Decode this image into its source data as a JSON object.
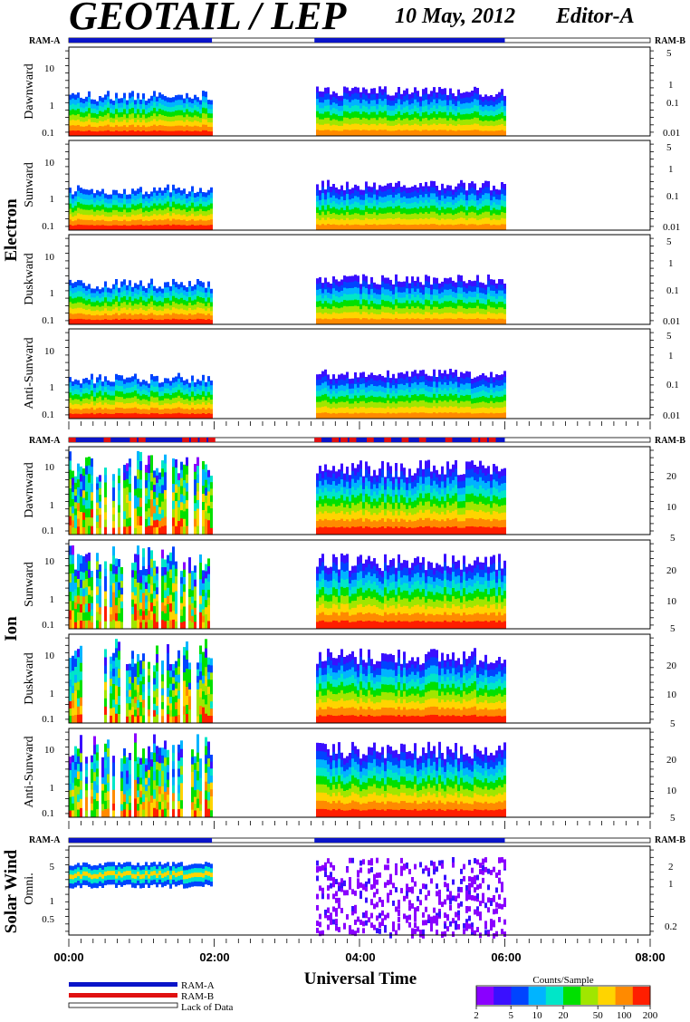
{
  "header": {
    "title": "GEOTAIL / LEP",
    "date": "10 May, 2012",
    "editor": "Editor-A"
  },
  "colors": {
    "ram_a": "#0a14c8",
    "ram_b": "#e01010",
    "colorscale": [
      "#8a00ff",
      "#3a10ff",
      "#0044ff",
      "#00b4ff",
      "#00e6c8",
      "#00e000",
      "#a0e600",
      "#ffd400",
      "#ff8a00",
      "#ff1e00"
    ]
  },
  "chart_data": {
    "type": "heatmap",
    "xlabel": "Universal Time",
    "xticks": [
      "00:00",
      "02:00",
      "04:00",
      "06:00",
      "08:00"
    ],
    "xlim_hours": [
      0,
      8
    ],
    "data_intervals_hours": [
      [
        0.0,
        1.97
      ],
      [
        3.38,
        6.0
      ]
    ],
    "colorbar": {
      "title": "Counts/Sample",
      "ticks": [
        "2",
        "5",
        "10",
        "20",
        "50",
        "100",
        "200"
      ],
      "range": [
        2,
        200
      ],
      "scale": "log"
    },
    "legend": [
      "RAM-A",
      "RAM-B",
      "Lack of Data"
    ],
    "groups": [
      {
        "name": "Electron",
        "ram_left": "RAM-A",
        "ram_right": "RAM-B",
        "panels": [
          {
            "label": "Dawnward",
            "left_ticks": [
              "10",
              "1",
              "0.1"
            ],
            "right_ticks": [
              "5",
              "1",
              "0.1",
              "0.01"
            ]
          },
          {
            "label": "Sunward",
            "left_ticks": [
              "10",
              "1",
              "0.1"
            ],
            "right_ticks": [
              "5",
              "1",
              "0.1",
              "0.01"
            ]
          },
          {
            "label": "Duskward",
            "left_ticks": [
              "10",
              "1",
              "0.1"
            ],
            "right_ticks": [
              "5",
              "1",
              "0.1",
              "0.01"
            ]
          },
          {
            "label": "Anti-Sunward",
            "left_ticks": [
              "10",
              "1",
              "0.1"
            ],
            "right_ticks": [
              "5",
              "1",
              "0.1",
              "0.01"
            ]
          }
        ]
      },
      {
        "name": "Ion",
        "ram_left": "RAM-A",
        "ram_right": "RAM-B",
        "panels": [
          {
            "label": "Dawnward",
            "left_ticks": [
              "10",
              "1",
              "0.1"
            ],
            "right_ticks": [
              "20",
              "10",
              "5"
            ]
          },
          {
            "label": "Sunward",
            "left_ticks": [
              "10",
              "1",
              "0.1"
            ],
            "right_ticks": [
              "20",
              "10",
              "5"
            ]
          },
          {
            "label": "Duskward",
            "left_ticks": [
              "10",
              "1",
              "0.1"
            ],
            "right_ticks": [
              "20",
              "10",
              "5"
            ]
          },
          {
            "label": "Anti-Sunward",
            "left_ticks": [
              "10",
              "1",
              "0.1"
            ],
            "right_ticks": [
              "20",
              "10",
              "5"
            ]
          }
        ]
      },
      {
        "name": "Solar Wind",
        "ram_left": "RAM-A",
        "ram_right": "RAM-B",
        "panels": [
          {
            "label": "Omni.",
            "left_ticks": [
              "5",
              "1",
              "0.5"
            ],
            "right_ticks": [
              "2",
              "1",
              "0.2"
            ]
          }
        ]
      }
    ]
  }
}
